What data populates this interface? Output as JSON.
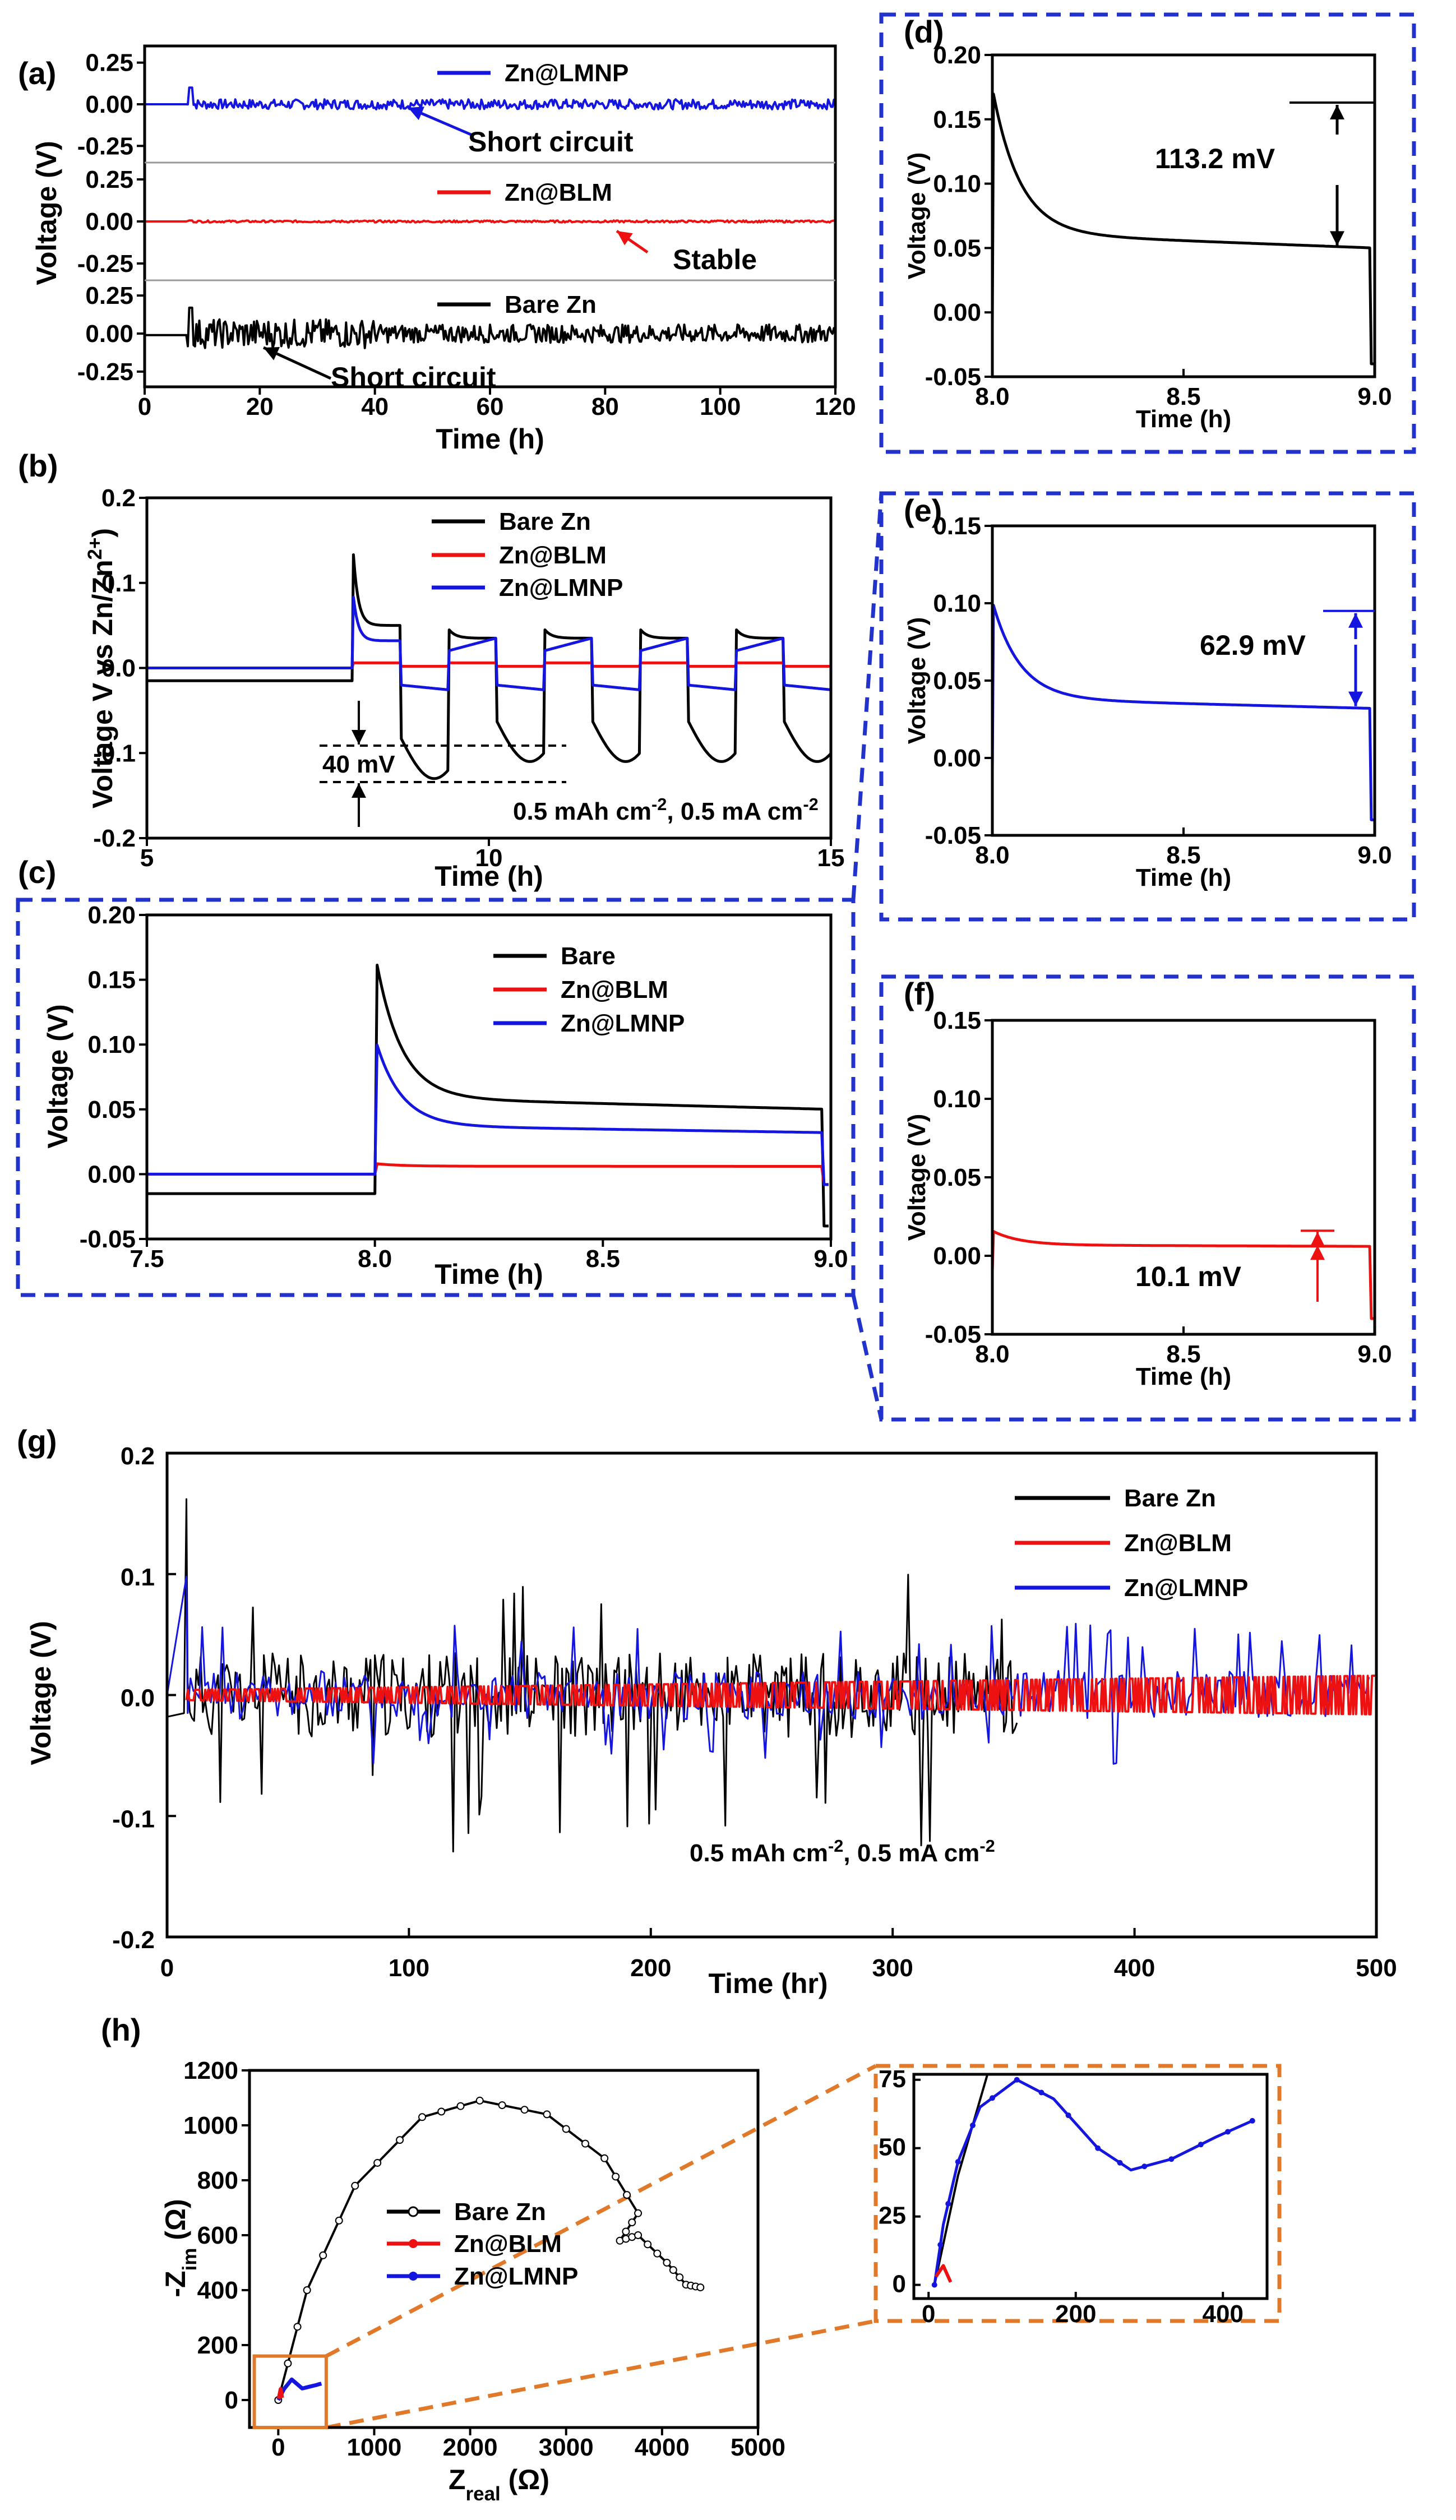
{
  "colors": {
    "bare": "#000000",
    "blm": "#ee1111",
    "lmnp": "#1515e0",
    "frame": "#2233cc",
    "zoom": "#e07a2a"
  },
  "chart_data": [
    {
      "id": "a",
      "label": "(a)",
      "type": "line",
      "xlabel": "Time (h)",
      "ylabel": "Voltage (V)",
      "xlim": [
        0,
        120
      ],
      "x_ticks": [
        "0",
        "20",
        "40",
        "60",
        "80",
        "100",
        "120"
      ],
      "subpanels": [
        {
          "series": "Zn@LMNP",
          "y_ticks": [
            "0.25",
            "0.00",
            "-0.25"
          ],
          "annotation": "Short circuit",
          "amplitude": 0.05
        },
        {
          "series": "Zn@BLM",
          "y_ticks": [
            "0.25",
            "0.00",
            "-0.25"
          ],
          "annotation": "Stable",
          "amplitude": 0.006
        },
        {
          "series": "Bare Zn",
          "y_ticks": [
            "0.25",
            "0.00",
            "-0.25"
          ],
          "annotation": "Short circuit",
          "amplitude": 0.12
        }
      ]
    },
    {
      "id": "b",
      "label": "(b)",
      "type": "line",
      "xlabel": "Time (h)",
      "ylabel": "Voltage V vs Zn/Zn",
      "ylabel_sup": "2+",
      "xlim": [
        5,
        15
      ],
      "ylim": [
        -0.2,
        0.2
      ],
      "x_ticks": [
        "5",
        "10",
        "15"
      ],
      "y_ticks": [
        "0.2",
        "0.1",
        "0.0",
        "-0.1",
        "-0.2"
      ],
      "legend": [
        "Bare Zn",
        "Zn@BLM",
        "Zn@LMNP"
      ],
      "annotation": "40 mV",
      "condition": {
        "a": "0.5 mAh cm",
        "a_sup": "-2",
        "b": ", 0.5 mA cm",
        "b_sup": "-2"
      }
    },
    {
      "id": "c",
      "label": "(c)",
      "type": "line",
      "xlabel": "Time (h)",
      "ylabel": "Voltage (V)",
      "xlim": [
        7.5,
        9.0
      ],
      "ylim": [
        -0.05,
        0.2
      ],
      "x_ticks": [
        "7.5",
        "8.0",
        "8.5",
        "9.0"
      ],
      "y_ticks": [
        "0.20",
        "0.15",
        "0.10",
        "0.05",
        "0.00",
        "-0.05"
      ],
      "legend": [
        "Bare",
        "Zn@BLM",
        "Zn@LMNP"
      ],
      "series": [
        {
          "name": "Bare",
          "pre": -0.015,
          "peak": 0.162,
          "end": 0.05
        },
        {
          "name": "Zn@BLM",
          "pre": 0.0,
          "peak": 0.008,
          "end": 0.006
        },
        {
          "name": "Zn@LMNP",
          "pre": 0.0,
          "peak": 0.1,
          "end": 0.032
        }
      ]
    },
    {
      "id": "d",
      "label": "(d)",
      "type": "line",
      "xlabel": "Time (h)",
      "ylabel": "Voltage (V)",
      "xlim": [
        8.0,
        9.0
      ],
      "ylim": [
        -0.05,
        0.2
      ],
      "x_ticks": [
        "8.0",
        "8.5",
        "9.0"
      ],
      "y_ticks": [
        "0.20",
        "0.15",
        "0.10",
        "0.05",
        "0.00",
        "-0.05"
      ],
      "series": {
        "name": "Bare Zn",
        "peak": 0.163,
        "end": 0.05
      },
      "annotation": "113.2 mV"
    },
    {
      "id": "e",
      "label": "(e)",
      "type": "line",
      "xlabel": "Time (h)",
      "ylabel": "Voltage (V)",
      "xlim": [
        8.0,
        9.0
      ],
      "ylim": [
        -0.05,
        0.15
      ],
      "x_ticks": [
        "8.0",
        "8.5",
        "9.0"
      ],
      "y_ticks": [
        "0.15",
        "0.10",
        "0.05",
        "0.00",
        "-0.05"
      ],
      "series": {
        "name": "Zn@LMNP",
        "peak": 0.095,
        "end": 0.032
      },
      "annotation": "62.9 mV"
    },
    {
      "id": "f",
      "label": "(f)",
      "type": "line",
      "xlabel": "Time (h)",
      "ylabel": "Voltage (V)",
      "xlim": [
        8.0,
        9.0
      ],
      "ylim": [
        -0.05,
        0.15
      ],
      "x_ticks": [
        "8.0",
        "8.5",
        "9.0"
      ],
      "y_ticks": [
        "0.15",
        "0.10",
        "0.05",
        "0.00",
        "-0.05"
      ],
      "series": {
        "name": "Zn@BLM",
        "peak": 0.015,
        "end": 0.006
      },
      "annotation": "10.1 mV"
    },
    {
      "id": "g",
      "label": "(g)",
      "type": "line",
      "xlabel": "Time (hr)",
      "ylabel": "Voltage (V)",
      "xlim": [
        0,
        500
      ],
      "ylim": [
        -0.2,
        0.2
      ],
      "x_ticks": [
        "0",
        "100",
        "200",
        "300",
        "400",
        "500"
      ],
      "y_ticks": [
        "0.2",
        "0.1",
        "0.0",
        "-0.1",
        "-0.2"
      ],
      "legend": [
        "Bare Zn",
        "Zn@BLM",
        "Zn@LMNP"
      ],
      "condition": {
        "a": "0.5 mAh cm",
        "a_sup": "-2",
        "b": ", 0.5 mA cm",
        "b_sup": "-2"
      },
      "series_extent_hr": {
        "Bare Zn": 352,
        "Zn@BLM": 500,
        "Zn@LMNP": 498
      }
    },
    {
      "id": "h",
      "label": "(h)",
      "type": "scatter",
      "xlabel": "Z",
      "xlabel_sub": "real",
      "xlabel_unit": " (Ω)",
      "ylabel": "-Z",
      "ylabel_sub": "im",
      "ylabel_unit": " (Ω)",
      "xlim": [
        -300,
        5000
      ],
      "ylim": [
        -100,
        1200
      ],
      "x_ticks": [
        "0",
        "1000",
        "2000",
        "3000",
        "4000",
        "5000"
      ],
      "y_ticks": [
        "1200",
        "1000",
        "800",
        "600",
        "400",
        "200",
        "0"
      ],
      "legend": [
        "Bare Zn",
        "Zn@BLM",
        "Zn@LMNP"
      ],
      "bare_zn": [
        [
          0,
          0
        ],
        [
          300,
          400
        ],
        [
          800,
          780
        ],
        [
          1500,
          1030
        ],
        [
          2100,
          1090
        ],
        [
          2800,
          1040
        ],
        [
          3400,
          880
        ],
        [
          3750,
          680
        ],
        [
          3560,
          580
        ],
        [
          3750,
          600
        ],
        [
          4050,
          500
        ],
        [
          4250,
          420
        ],
        [
          4400,
          410
        ]
      ],
      "zn_blm": [
        [
          5,
          5
        ],
        [
          25,
          40
        ],
        [
          40,
          8
        ]
      ],
      "zn_lmnp": [
        [
          0,
          0
        ],
        [
          60,
          40
        ],
        [
          140,
          75
        ],
        [
          250,
          42
        ],
        [
          400,
          55
        ],
        [
          450,
          60
        ]
      ]
    },
    {
      "id": "h-inset",
      "type": "scatter",
      "xlim": [
        -20,
        460
      ],
      "ylim": [
        -5,
        77
      ],
      "x_ticks": [
        "0",
        "200",
        "400"
      ],
      "y_ticks": [
        "75",
        "50",
        "25",
        "0"
      ],
      "zn_lmnp": [
        [
          8,
          0
        ],
        [
          20,
          22
        ],
        [
          40,
          45
        ],
        [
          70,
          65
        ],
        [
          120,
          75
        ],
        [
          170,
          68
        ],
        [
          230,
          50
        ],
        [
          275,
          42
        ],
        [
          330,
          46
        ],
        [
          390,
          54
        ],
        [
          440,
          60
        ]
      ],
      "zn_blm": [
        [
          10,
          3
        ],
        [
          20,
          7
        ],
        [
          30,
          1
        ]
      ],
      "bare_zn": [
        [
          8,
          0
        ],
        [
          40,
          40
        ],
        [
          80,
          77
        ]
      ]
    }
  ]
}
